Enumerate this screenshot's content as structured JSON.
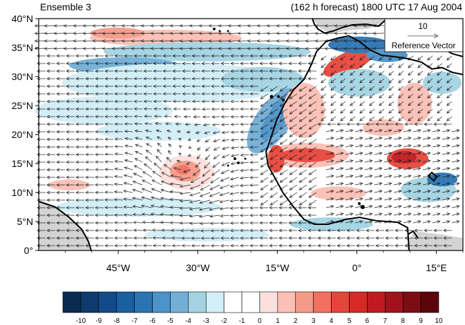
{
  "header": {
    "left_title": "Ensemble 3",
    "right_title": "(162 h forecast) 1800 UTC 17 Aug 2004"
  },
  "map": {
    "lon_range": [
      -60,
      20
    ],
    "lat_range": [
      0,
      40
    ],
    "lat_ticks": [
      "0°",
      "5°N",
      "10°N",
      "15°N",
      "20°N",
      "25°N",
      "30°N",
      "35°N",
      "40°N"
    ],
    "lon_ticks": [
      "45°W",
      "30°W",
      "15°W",
      "0°",
      "15°E"
    ],
    "land_color": "#d3d3d3",
    "coast_color": "#000000"
  },
  "reference_vector": {
    "value_label": "10",
    "label": "Reference Vector"
  },
  "colorbar": {
    "labels": [
      "-10",
      "-9",
      "-8",
      "-7",
      "-6",
      "-5",
      "-4",
      "-3",
      "-2",
      "-1",
      "0",
      "1",
      "2",
      "3",
      "4",
      "5",
      "6",
      "7",
      "8",
      "9",
      "10"
    ],
    "colors": [
      "#0b2a52",
      "#0e3a6e",
      "#134b8a",
      "#1a5fa0",
      "#2a74b4",
      "#4b93c8",
      "#72aed6",
      "#a3d3e3",
      "#d2eef6",
      "#ffffff",
      "#ffffff",
      "#fde0dd",
      "#fbbfb5",
      "#f69a88",
      "#f1705e",
      "#e8453a",
      "#d62a26",
      "#c01a20",
      "#a1121b",
      "#7d0c14",
      "#5a0509"
    ]
  }
}
